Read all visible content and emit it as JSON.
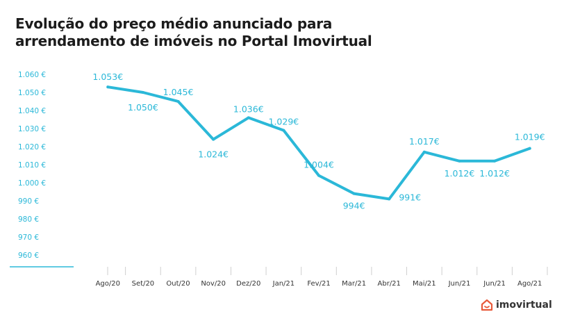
{
  "title": {
    "line1": "Evolução do preço médio anunciado para",
    "line2": "arrendamento de imóveis no Portal Imovirtual"
  },
  "brand": {
    "name": "imovirtual",
    "icon": "house-icon",
    "color": "#e85a3a"
  },
  "colors": {
    "line": "#2bb8d8",
    "axis_text": "#2bb8d8",
    "category_text": "#333333",
    "tick": "#cfcfcf"
  },
  "chart_data": {
    "type": "line",
    "title": "Evolução do preço médio anunciado para arrendamento de imóveis no Portal Imovirtual",
    "categories": [
      "Ago/20",
      "Set/20",
      "Out/20",
      "Nov/20",
      "Dez/20",
      "Jan/21",
      "Fev/21",
      "Mar/21",
      "Abr/21",
      "Mai/21",
      "Jun/21",
      "Jun/21",
      "Ago/21"
    ],
    "series": [
      {
        "name": "Preço médio",
        "values": [
          1053,
          1050,
          1045,
          1024,
          1036,
          1029,
          1004,
          994,
          991,
          1017,
          1012,
          1012,
          1019
        ]
      }
    ],
    "data_labels": [
      "1.053€",
      "1.050€",
      "1.045€",
      "1.024€",
      "1.036€",
      "1.029€",
      "1.004€",
      "994€",
      "991€",
      "1.017€",
      "1.012€",
      "1.012€",
      "1.019€"
    ],
    "ylim": [
      960,
      1060
    ],
    "yticks": [
      960,
      970,
      980,
      990,
      1000,
      1010,
      1020,
      1030,
      1040,
      1050,
      1060
    ],
    "ytick_labels": [
      "960  €",
      "970  €",
      "980  €",
      "990  €",
      "1.000  €",
      "1.010  €",
      "1.020  €",
      "1.030  €",
      "1.040  €",
      "1.050  €",
      "1.060  €"
    ],
    "xlabel": "",
    "ylabel": "",
    "grid": false
  }
}
